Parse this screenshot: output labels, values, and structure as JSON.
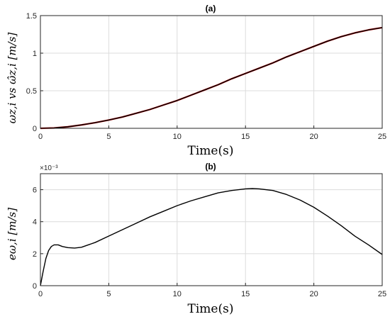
{
  "chart_data": [
    {
      "type": "line",
      "title": "(a)",
      "xlabel": "Time(s)",
      "ylabel": "ωz,i vs ω̂z,i [m/s]",
      "xlim": [
        0,
        25
      ],
      "ylim": [
        0,
        1.5
      ],
      "xticks": [
        "0",
        "5",
        "10",
        "15",
        "20",
        "25"
      ],
      "yticks": [
        "0",
        "0.5",
        "1",
        "1.5"
      ],
      "grid": true,
      "series": [
        {
          "color": "#c00000",
          "x": [
            0,
            1,
            2,
            3,
            4,
            5,
            6,
            7,
            8,
            9,
            10,
            11,
            12,
            13,
            14,
            15,
            16,
            17,
            18,
            19,
            20,
            21,
            22,
            23,
            24,
            25
          ],
          "y": [
            0,
            0.005,
            0.02,
            0.045,
            0.075,
            0.11,
            0.15,
            0.2,
            0.25,
            0.31,
            0.37,
            0.44,
            0.51,
            0.58,
            0.66,
            0.73,
            0.8,
            0.87,
            0.95,
            1.02,
            1.09,
            1.16,
            1.22,
            1.27,
            1.31,
            1.34
          ]
        },
        {
          "color": "#000000",
          "x": [
            0,
            1,
            2,
            3,
            4,
            5,
            6,
            7,
            8,
            9,
            10,
            11,
            12,
            13,
            14,
            15,
            16,
            17,
            18,
            19,
            20,
            21,
            22,
            23,
            24,
            25
          ],
          "y": [
            0,
            0.005,
            0.02,
            0.045,
            0.075,
            0.11,
            0.15,
            0.2,
            0.25,
            0.31,
            0.37,
            0.44,
            0.51,
            0.58,
            0.66,
            0.73,
            0.8,
            0.87,
            0.95,
            1.02,
            1.09,
            1.16,
            1.22,
            1.27,
            1.31,
            1.34
          ]
        }
      ]
    },
    {
      "type": "line",
      "title": "(b)",
      "xlabel": "Time(s)",
      "ylabel": "eω,i [m/s]",
      "multiplier": "×10⁻³",
      "xlim": [
        0,
        25
      ],
      "ylim": [
        0,
        7
      ],
      "xticks": [
        "0",
        "5",
        "10",
        "15",
        "20",
        "25"
      ],
      "yticks": [
        "0",
        "2",
        "4",
        "6"
      ],
      "grid": true,
      "series": [
        {
          "color": "#000000",
          "x": [
            0,
            0.2,
            0.4,
            0.6,
            0.8,
            1.0,
            1.3,
            1.6,
            2.0,
            2.5,
            3.0,
            3.5,
            4,
            5,
            6,
            7,
            8,
            9,
            10,
            11,
            12,
            13,
            14,
            15,
            15.5,
            16,
            17,
            18,
            19,
            20,
            21,
            22,
            23,
            24,
            25
          ],
          "y": [
            0,
            0.9,
            1.7,
            2.2,
            2.45,
            2.55,
            2.55,
            2.45,
            2.38,
            2.35,
            2.4,
            2.55,
            2.7,
            3.1,
            3.5,
            3.9,
            4.3,
            4.65,
            5.0,
            5.3,
            5.55,
            5.8,
            5.95,
            6.05,
            6.07,
            6.05,
            5.95,
            5.7,
            5.35,
            4.9,
            4.35,
            3.75,
            3.1,
            2.55,
            1.95
          ]
        }
      ]
    }
  ]
}
